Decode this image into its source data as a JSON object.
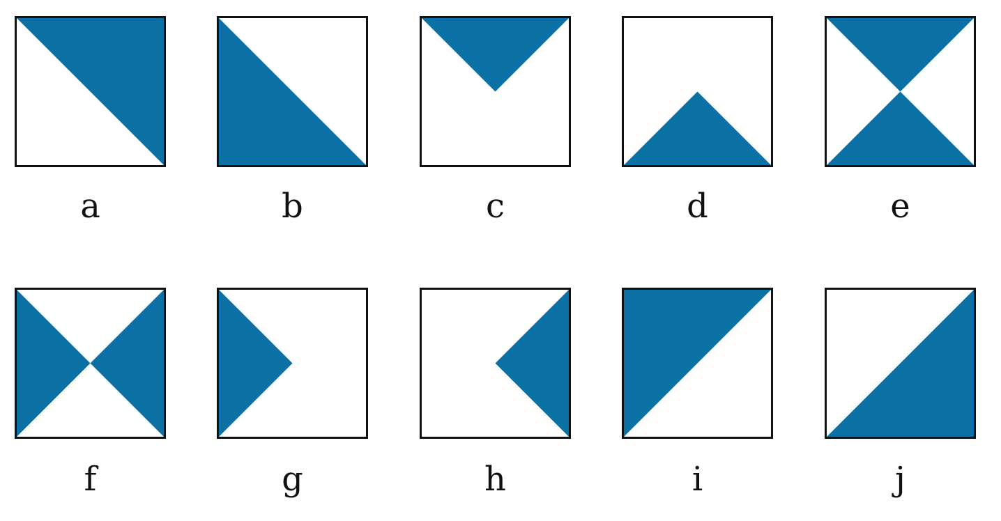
{
  "colors": {
    "fill": "#0b70a3",
    "background": "#ffffff",
    "border": "#111111"
  },
  "tiles": [
    {
      "label": "a",
      "shape": "upper-right-half"
    },
    {
      "label": "b",
      "shape": "lower-left-half"
    },
    {
      "label": "c",
      "shape": "top-triangle"
    },
    {
      "label": "d",
      "shape": "bottom-triangle"
    },
    {
      "label": "e",
      "shape": "top-and-bottom-triangles"
    },
    {
      "label": "f",
      "shape": "left-and-right-triangles"
    },
    {
      "label": "g",
      "shape": "left-triangle"
    },
    {
      "label": "h",
      "shape": "right-triangle"
    },
    {
      "label": "i",
      "shape": "upper-left-half"
    },
    {
      "label": "j",
      "shape": "lower-right-half"
    }
  ]
}
